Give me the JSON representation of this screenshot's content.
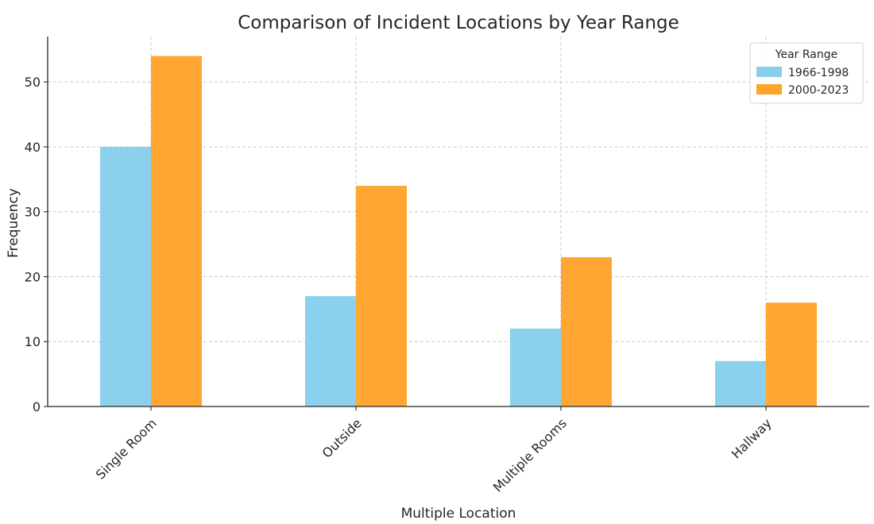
{
  "chart_data": {
    "type": "bar",
    "title": "Comparison of Incident Locations by Year Range",
    "xlabel": "Multiple Location",
    "ylabel": "Frequency",
    "categories": [
      "Single Room",
      "Outside",
      "Multiple Rooms",
      "Hallway"
    ],
    "series": [
      {
        "name": "1966-1998",
        "values": [
          40,
          17,
          12,
          7
        ],
        "color": "#87CEEB"
      },
      {
        "name": "2000-2023",
        "values": [
          54,
          34,
          23,
          16
        ],
        "color": "#FFA42B"
      }
    ],
    "ylim": [
      0,
      57
    ],
    "yticks": [
      0,
      10,
      20,
      30,
      40,
      50
    ],
    "grid": true,
    "legend": {
      "title": "Year Range",
      "position": "top-right"
    }
  }
}
